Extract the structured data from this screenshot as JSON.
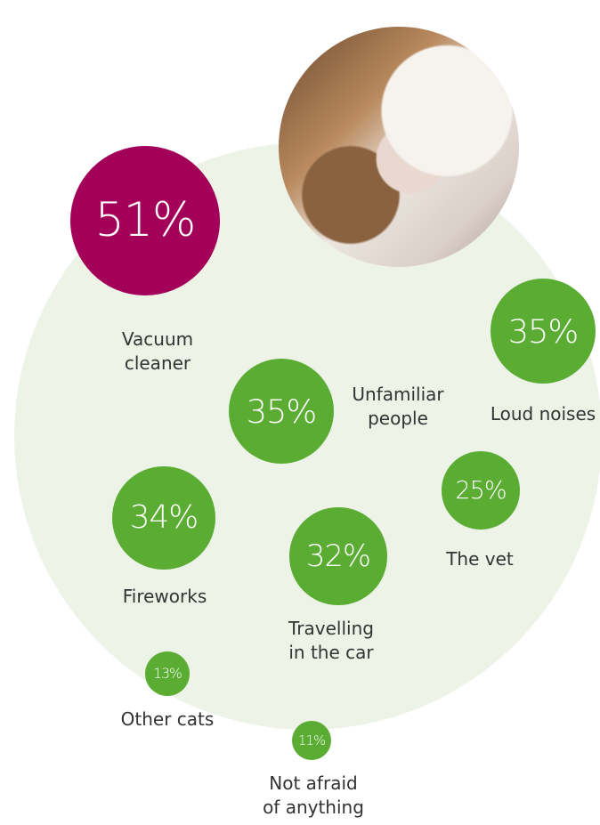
{
  "chart_data": {
    "type": "bubble",
    "categories": [
      "Vacuum cleaner",
      "Unfamiliar people",
      "Loud noises",
      "Fireworks",
      "Travelling in the car",
      "The vet",
      "Other cats",
      "Not afraid of anything"
    ],
    "values": [
      51,
      35,
      35,
      34,
      32,
      25,
      13,
      11
    ],
    "value_labels": [
      "51%",
      "35%",
      "35%",
      "34%",
      "32%",
      "25%",
      "13%",
      "11%"
    ],
    "colors": [
      "#a3005a",
      "#5aad32",
      "#5aad32",
      "#5aad32",
      "#5aad32",
      "#5aad32",
      "#5aad32",
      "#5aad32"
    ]
  }
}
